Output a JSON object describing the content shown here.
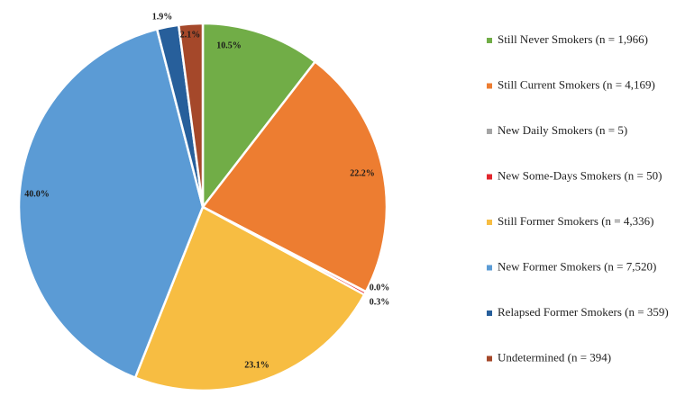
{
  "chart_data": {
    "type": "pie",
    "title": "",
    "legend_position": "right",
    "start_angle_deg": 0,
    "direction": "clockwise",
    "slices": [
      {
        "legend": "Still Never Smokers (n = 1,966)",
        "n": 1966,
        "percent": 10.5,
        "label": "10.5%",
        "color": "#71ad47"
      },
      {
        "legend": "Still Current Smokers (n = 4,169)",
        "n": 4169,
        "percent": 22.2,
        "label": "22.2%",
        "color": "#ed7d31"
      },
      {
        "legend": "New Daily Smokers (n = 5)",
        "n": 5,
        "percent": 0.0,
        "label": "0.0%",
        "color": "#a5a5a5"
      },
      {
        "legend": "New Some-Days Smokers (n = 50)",
        "n": 50,
        "percent": 0.3,
        "label": "0.3%",
        "color": "#e2262d"
      },
      {
        "legend": "Still Former Smokers (n = 4,336)",
        "n": 4336,
        "percent": 23.1,
        "label": "23.1%",
        "color": "#f7bd42"
      },
      {
        "legend": "New Former Smokers (n = 7,520)",
        "n": 7520,
        "percent": 40.0,
        "label": "40.0%",
        "color": "#5b9bd5"
      },
      {
        "legend": "Relapsed Former Smokers (n = 359)",
        "n": 359,
        "percent": 1.9,
        "label": "1.9%",
        "color": "#275f9b"
      },
      {
        "legend": "Undetermined (n = 394)",
        "n": 394,
        "percent": 2.1,
        "label": "2.1%",
        "color": "#a5482a"
      }
    ]
  }
}
